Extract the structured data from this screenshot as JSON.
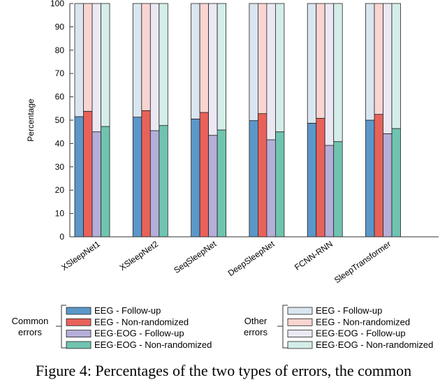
{
  "chart_data": {
    "type": "stacked-bar",
    "y_label": "Percentage",
    "categories": [
      "XSleepNet1",
      "XSleepNet2",
      "SeqSleepNet",
      "DeepSleepNet",
      "FCNN-RNN",
      "SleepTransformer"
    ],
    "ylim": [
      0,
      100
    ],
    "yticks": [
      0,
      10,
      20,
      30,
      40,
      50,
      60,
      70,
      80,
      90,
      100
    ],
    "series": [
      {
        "name": "EEG - Follow-up",
        "group": "Common errors",
        "color": "#5b97c8",
        "values": [
          51.5,
          51.3,
          50.5,
          49.8,
          48.7,
          50
        ]
      },
      {
        "name": "EEG - Non-randomized",
        "group": "Common errors",
        "color": "#e8625a",
        "values": [
          53.8,
          54.1,
          53.3,
          52.8,
          50.8,
          52.5
        ]
      },
      {
        "name": "EEG·EOG - Follow-up",
        "group": "Common errors",
        "color": "#b4aed8",
        "values": [
          45,
          45.5,
          43.5,
          41.6,
          39.2,
          44.2
        ]
      },
      {
        "name": "EEG·EOG - Non-randomized",
        "group": "Common errors",
        "color": "#6fc4b0",
        "values": [
          47.3,
          47.7,
          45.8,
          45,
          40.8,
          46.4
        ]
      },
      {
        "name": "EEG - Follow-up",
        "group": "Other errors",
        "color": "#d9e6f0",
        "values": [
          48.5,
          48.7,
          49.5,
          50.2,
          51.3,
          50
        ]
      },
      {
        "name": "EEG - Non-randomized",
        "group": "Other errors",
        "color": "#f9d5d1",
        "values": [
          46.2,
          45.9,
          46.7,
          47.2,
          49.2,
          47.5
        ]
      },
      {
        "name": "EEG·EOG - Follow-up",
        "group": "Other errors",
        "color": "#ebe8f4",
        "values": [
          55,
          54.5,
          56.5,
          58.4,
          60.8,
          55.8
        ]
      },
      {
        "name": "EEG·EOG - Non-randomized",
        "group": "Other errors",
        "color": "#d5ede8",
        "values": [
          52.7,
          52.3,
          54.2,
          55,
          59.2,
          53.6
        ]
      }
    ]
  },
  "caption": "Figure 4: Percentages of the two types of errors, the common"
}
